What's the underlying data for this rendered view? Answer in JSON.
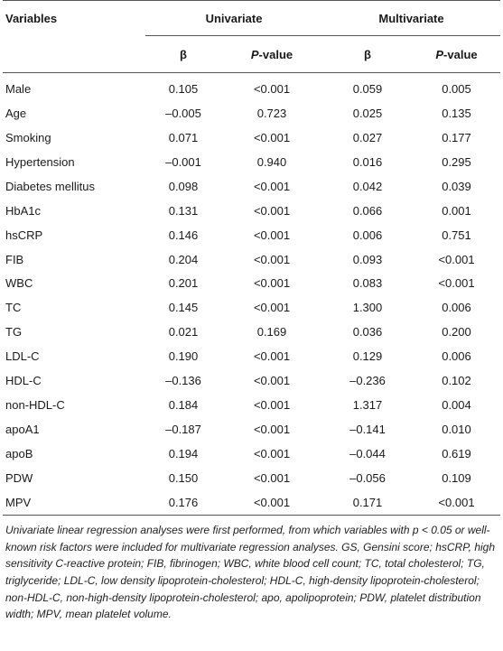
{
  "table": {
    "headers": {
      "variables": "Variables",
      "univariate": "Univariate",
      "multivariate": "Multivariate",
      "beta": "β",
      "p_italic": "P",
      "p_suffix": "-value"
    },
    "rows": [
      {
        "variable": "Male",
        "uni_beta": "0.105",
        "uni_p": "<0.001",
        "multi_beta": "0.059",
        "multi_p": "0.005"
      },
      {
        "variable": "Age",
        "uni_beta": "–0.005",
        "uni_p": "0.723",
        "multi_beta": "0.025",
        "multi_p": "0.135"
      },
      {
        "variable": "Smoking",
        "uni_beta": "0.071",
        "uni_p": "<0.001",
        "multi_beta": "0.027",
        "multi_p": "0.177"
      },
      {
        "variable": "Hypertension",
        "uni_beta": "–0.001",
        "uni_p": "0.940",
        "multi_beta": "0.016",
        "multi_p": "0.295"
      },
      {
        "variable": "Diabetes mellitus",
        "uni_beta": "0.098",
        "uni_p": "<0.001",
        "multi_beta": "0.042",
        "multi_p": "0.039"
      },
      {
        "variable": "HbA1c",
        "uni_beta": "0.131",
        "uni_p": "<0.001",
        "multi_beta": "0.066",
        "multi_p": "0.001"
      },
      {
        "variable": "hsCRP",
        "uni_beta": "0.146",
        "uni_p": "<0.001",
        "multi_beta": "0.006",
        "multi_p": "0.751"
      },
      {
        "variable": "FIB",
        "uni_beta": "0.204",
        "uni_p": "<0.001",
        "multi_beta": "0.093",
        "multi_p": "<0.001"
      },
      {
        "variable": "WBC",
        "uni_beta": "0.201",
        "uni_p": "<0.001",
        "multi_beta": "0.083",
        "multi_p": "<0.001"
      },
      {
        "variable": "TC",
        "uni_beta": "0.145",
        "uni_p": "<0.001",
        "multi_beta": "1.300",
        "multi_p": "0.006"
      },
      {
        "variable": "TG",
        "uni_beta": "0.021",
        "uni_p": "0.169",
        "multi_beta": "0.036",
        "multi_p": "0.200"
      },
      {
        "variable": "LDL-C",
        "uni_beta": "0.190",
        "uni_p": "<0.001",
        "multi_beta": "0.129",
        "multi_p": "0.006"
      },
      {
        "variable": "HDL-C",
        "uni_beta": "–0.136",
        "uni_p": "<0.001",
        "multi_beta": "–0.236",
        "multi_p": "0.102"
      },
      {
        "variable": "non-HDL-C",
        "uni_beta": "0.184",
        "uni_p": "<0.001",
        "multi_beta": "1.317",
        "multi_p": "0.004"
      },
      {
        "variable": "apoA1",
        "uni_beta": "–0.187",
        "uni_p": "<0.001",
        "multi_beta": "–0.141",
        "multi_p": "0.010"
      },
      {
        "variable": "apoB",
        "uni_beta": "0.194",
        "uni_p": "<0.001",
        "multi_beta": "–0.044",
        "multi_p": "0.619"
      },
      {
        "variable": "PDW",
        "uni_beta": "0.150",
        "uni_p": "<0.001",
        "multi_beta": "–0.056",
        "multi_p": "0.109"
      },
      {
        "variable": "MPV",
        "uni_beta": "0.176",
        "uni_p": "<0.001",
        "multi_beta": "0.171",
        "multi_p": "<0.001"
      }
    ]
  },
  "footnote": "Univariate linear regression analyses were first performed, from which variables with p < 0.05 or well-known risk factors were included for multivariate regression analyses. GS, Gensini score; hsCRP, high sensitivity C-reactive protein; FIB, fibrinogen; WBC, white blood cell count; TC, total cholesterol; TG, triglyceride; LDL-C, low density lipoprotein-cholesterol; HDL-C, high-density lipoprotein-cholesterol; non-HDL-C, non-high-density lipoprotein-cholesterol; apo, apolipoprotein; PDW, platelet distribution width; MPV, mean platelet volume."
}
